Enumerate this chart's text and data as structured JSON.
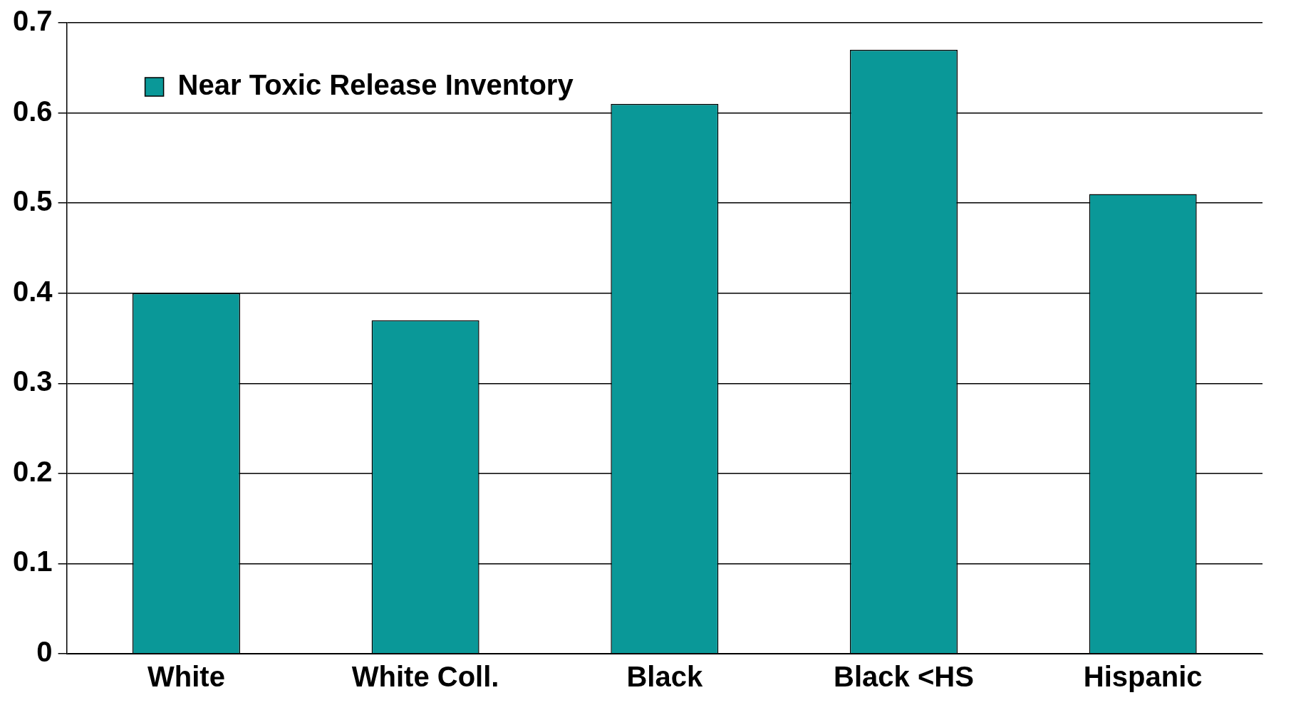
{
  "chart_data": {
    "type": "bar",
    "categories": [
      "White",
      "White Coll.",
      "Black",
      "Black <HS",
      "Hispanic"
    ],
    "series": [
      {
        "name": "Near Toxic Release Inventory",
        "color": "#0a9898",
        "values": [
          0.4,
          0.37,
          0.61,
          0.67,
          0.51
        ]
      }
    ],
    "ylim": [
      0,
      0.7
    ],
    "yticks": [
      0,
      0.1,
      0.2,
      0.3,
      0.4,
      0.5,
      0.6,
      0.7
    ],
    "grid": "y",
    "legend": "top left"
  }
}
